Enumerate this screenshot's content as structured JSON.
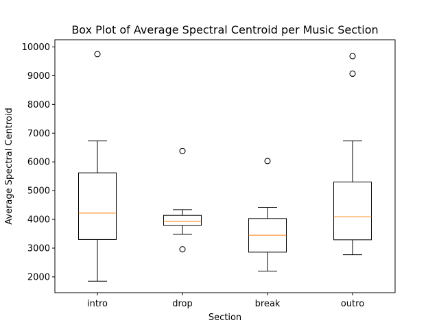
{
  "chart_data": {
    "type": "box",
    "title": "Box Plot of Average Spectral Centroid per Music Section",
    "xlabel": "Section",
    "ylabel": "Average Spectral Centroid",
    "ylim": [
      1450,
      10250
    ],
    "yticks": [
      2000,
      3000,
      4000,
      5000,
      6000,
      7000,
      8000,
      9000,
      10000
    ],
    "grid": false,
    "categories": [
      "intro",
      "drop",
      "break",
      "outro"
    ],
    "boxes": [
      {
        "label": "intro",
        "whisker_low": 1850,
        "q1": 3300,
        "median": 4220,
        "q3": 5620,
        "whisker_high": 6730,
        "outliers": [
          9750
        ]
      },
      {
        "label": "drop",
        "whisker_low": 3480,
        "q1": 3790,
        "median": 3930,
        "q3": 4140,
        "whisker_high": 4340,
        "outliers": [
          6380,
          2960
        ]
      },
      {
        "label": "break",
        "whisker_low": 2200,
        "q1": 2860,
        "median": 3450,
        "q3": 4030,
        "whisker_high": 4420,
        "outliers": [
          6030
        ]
      },
      {
        "label": "outro",
        "whisker_low": 2770,
        "q1": 3290,
        "median": 4090,
        "q3": 5300,
        "whisker_high": 6730,
        "outliers": [
          9680,
          9070
        ]
      }
    ],
    "colors": {
      "box": "#000000",
      "median": "#ff7f0e",
      "outlier": "#000000"
    }
  }
}
